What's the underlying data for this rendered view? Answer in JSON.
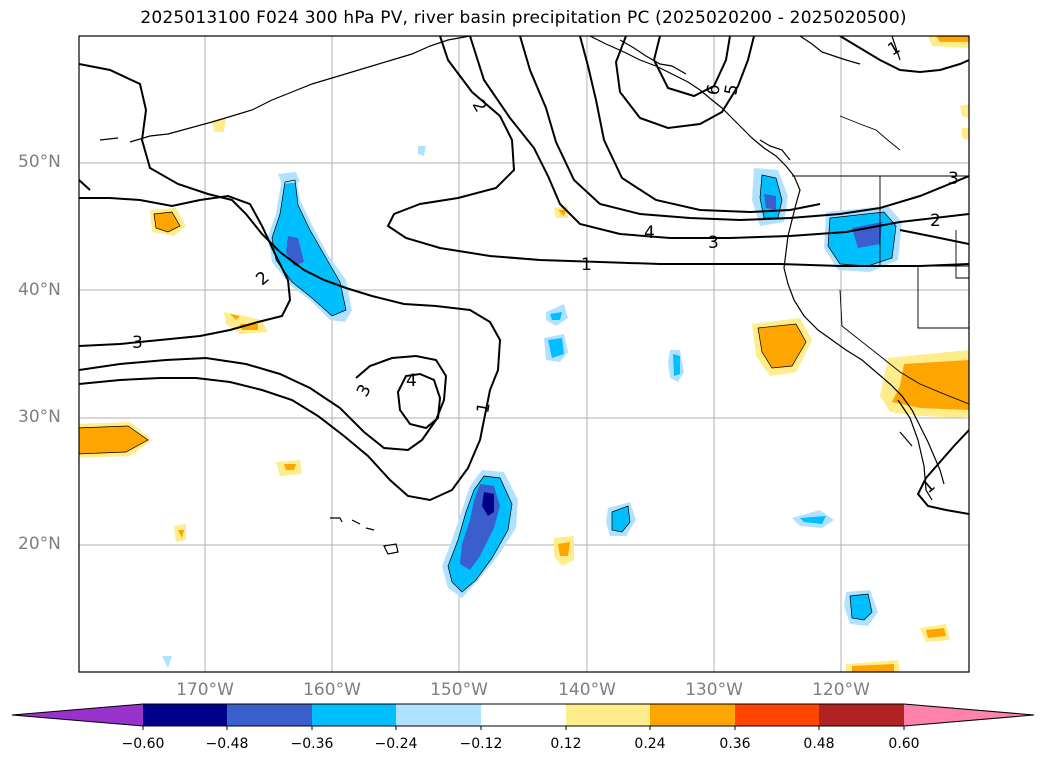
{
  "title": "2025013100 F024 300 hPa PV, river basin precipitation PC (2025020200 - 2025020500)",
  "lat_labels": [
    "50°N",
    "40°N",
    "30°N",
    "20°N"
  ],
  "lon_labels": [
    "170°W",
    "160°W",
    "150°W",
    "140°W",
    "130°W",
    "120°W"
  ],
  "contour_labels": [
    "1",
    "1",
    "1",
    "1",
    "2",
    "2",
    "2",
    "3",
    "3",
    "3",
    "3",
    "4",
    "4",
    "5",
    "6"
  ],
  "colorbar": {
    "ticks": [
      "−0.60",
      "−0.48",
      "−0.36",
      "−0.24",
      "−0.12",
      "0.12",
      "0.24",
      "0.36",
      "0.48",
      "0.60"
    ],
    "colors": [
      "#9932cc",
      "#00008b",
      "#3a5fcd",
      "#00bfff",
      "#b0e2ff",
      "#ffffff",
      "#ffec8b",
      "#ffa500",
      "#ff4500",
      "#b22222",
      "#ff82ab"
    ]
  }
}
